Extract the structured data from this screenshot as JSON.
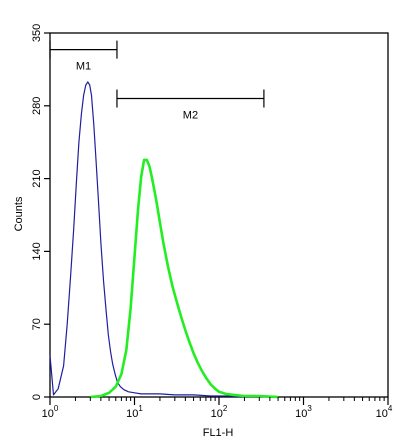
{
  "chart_data": {
    "type": "line",
    "title": "",
    "xlabel": "FL1-H",
    "ylabel": "Counts",
    "xscale": "log",
    "xlim": [
      1,
      10000
    ],
    "ylim": [
      0,
      350
    ],
    "grid": false,
    "x_ticks": [
      {
        "value": 1,
        "base": "10",
        "exp": "0"
      },
      {
        "value": 10,
        "base": "10",
        "exp": "1"
      },
      {
        "value": 100,
        "base": "10",
        "exp": "2"
      },
      {
        "value": 1000,
        "base": "10",
        "exp": "3"
      },
      {
        "value": 10000,
        "base": "10",
        "exp": "4"
      }
    ],
    "y_ticks": [
      {
        "value": 0,
        "label": "0"
      },
      {
        "value": 70,
        "label": "70"
      },
      {
        "value": 140,
        "label": "140"
      },
      {
        "value": 210,
        "label": "210"
      },
      {
        "value": 280,
        "label": "280"
      },
      {
        "value": 350,
        "label": "350"
      }
    ],
    "markers": [
      {
        "label": "M1",
        "x_start": 1,
        "x_end": 6.2,
        "y": 334
      },
      {
        "label": "M2",
        "x_start": 6.2,
        "x_end": 340,
        "y": 287
      }
    ],
    "series": [
      {
        "color": "#1f1fa0",
        "x": [
          1.0,
          1.1,
          1.25,
          1.45,
          1.6,
          1.75,
          1.9,
          2.05,
          2.2,
          2.35,
          2.5,
          2.65,
          2.8,
          2.95,
          3.1,
          3.3,
          3.5,
          3.75,
          4.0,
          4.3,
          4.6,
          4.9,
          5.2,
          5.5,
          5.9,
          6.3,
          6.8,
          7.5,
          8.5,
          10,
          12,
          15,
          20,
          30,
          50,
          80,
          130,
          200
        ],
        "y": [
          40,
          2,
          8,
          30,
          70,
          115,
          160,
          205,
          245,
          272,
          290,
          300,
          303,
          300,
          290,
          262,
          228,
          188,
          148,
          112,
          84,
          60,
          44,
          32,
          22,
          14,
          10,
          7,
          5,
          4,
          3,
          3,
          3,
          2,
          2,
          1,
          1,
          0
        ]
      },
      {
        "color": "#22ee22",
        "x": [
          3,
          4,
          5,
          6,
          7,
          8,
          9,
          10,
          11,
          12,
          13,
          14,
          15,
          16,
          18,
          20,
          22,
          25,
          28,
          32,
          36,
          40,
          45,
          50,
          56,
          63,
          71,
          80,
          90,
          100,
          120,
          150,
          200,
          300,
          500
        ],
        "y": [
          0,
          1,
          4,
          10,
          22,
          45,
          85,
          135,
          180,
          212,
          228,
          228,
          222,
          212,
          190,
          168,
          148,
          125,
          107,
          90,
          76,
          64,
          52,
          42,
          33,
          25,
          18,
          12,
          8,
          5,
          3,
          2,
          1,
          1,
          0
        ]
      }
    ]
  }
}
